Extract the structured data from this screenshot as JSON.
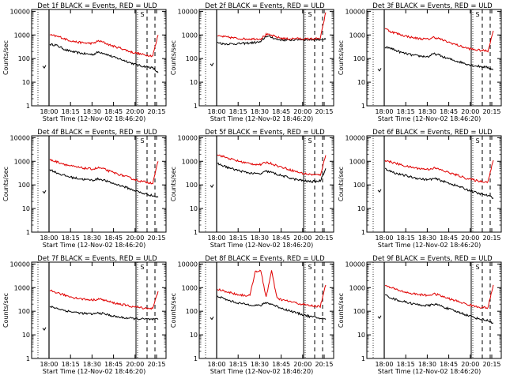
{
  "chart_data": [
    {
      "type": "line",
      "title": "Det 1f BLACK = Events, RED = ULD",
      "xlabel": "Start Time (12-Nov-02 18:46:20)",
      "ylabel": "Counts/sec",
      "yscale": "log",
      "ylim": [
        1,
        12000
      ],
      "x_ticks": [
        "18:00",
        "18:15",
        "18:30",
        "18:45",
        "20:00",
        "20:15"
      ],
      "y_ticks": [
        "1",
        "10",
        "100",
        "1000",
        "10000"
      ],
      "markers": [
        "S"
      ],
      "series": [
        {
          "color": "#000000",
          "values": [
            400,
            380,
            300,
            230,
            200,
            180,
            165,
            155,
            150,
            190,
            170,
            135,
            110,
            95,
            80,
            65,
            55,
            48,
            45,
            40,
            25
          ]
        },
        {
          "color": "#e00000",
          "values": [
            1000,
            900,
            800,
            650,
            560,
            500,
            470,
            450,
            440,
            560,
            480,
            380,
            320,
            280,
            230,
            190,
            170,
            150,
            140,
            130,
            1000
          ]
        }
      ]
    },
    {
      "type": "line",
      "title": "Det 2f BLACK = Events, RED = ULD",
      "xlabel": "Start Time (12-Nov-02 18:46:20)",
      "ylabel": "Counts/sec",
      "yscale": "log",
      "ylim": [
        1,
        12000
      ],
      "x_ticks": [
        "18:00",
        "18:15",
        "18:30",
        "18:45",
        "20:00",
        "20:15"
      ],
      "y_ticks": [
        "1",
        "10",
        "100",
        "1000",
        "10000"
      ],
      "markers": [
        "S"
      ],
      "series": [
        {
          "color": "#000000",
          "values": [
            500,
            420,
            420,
            420,
            430,
            440,
            460,
            480,
            500,
            900,
            800,
            650,
            620,
            600,
            620,
            650,
            640,
            630,
            640,
            650,
            650
          ]
        },
        {
          "color": "#e00000",
          "values": [
            900,
            850,
            800,
            750,
            700,
            680,
            680,
            680,
            690,
            1050,
            950,
            800,
            720,
            680,
            700,
            700,
            680,
            680,
            690,
            700,
            9000
          ]
        }
      ]
    },
    {
      "type": "line",
      "title": "Det 3f BLACK = Events, RED = ULD",
      "xlabel": "Start Time (12-Nov-02 18:46:20)",
      "ylabel": "Counts/sec",
      "yscale": "log",
      "ylim": [
        1,
        12000
      ],
      "x_ticks": [
        "18:00",
        "18:15",
        "18:30",
        "18:45",
        "20:00",
        "20:15"
      ],
      "y_ticks": [
        "1",
        "10",
        "100",
        "1000",
        "10000"
      ],
      "markers": [
        "S"
      ],
      "series": [
        {
          "color": "#000000",
          "values": [
            300,
            280,
            220,
            180,
            160,
            140,
            130,
            125,
            120,
            160,
            140,
            110,
            95,
            80,
            70,
            60,
            52,
            48,
            45,
            42,
            35
          ]
        },
        {
          "color": "#e00000",
          "values": [
            1900,
            1400,
            1200,
            1000,
            880,
            780,
            720,
            680,
            660,
            800,
            700,
            560,
            470,
            400,
            330,
            280,
            250,
            230,
            220,
            210,
            1500
          ]
        }
      ]
    },
    {
      "type": "line",
      "title": "Det 4f BLACK = Events, RED = ULD",
      "xlabel": "Start Time (12-Nov-02 18:46:20)",
      "ylabel": "Counts/sec",
      "yscale": "log",
      "ylim": [
        1,
        12000
      ],
      "x_ticks": [
        "18:00",
        "18:15",
        "18:30",
        "18:45",
        "20:00",
        "20:15"
      ],
      "y_ticks": [
        "1",
        "10",
        "100",
        "1000",
        "10000"
      ],
      "markers": [
        "S"
      ],
      "series": [
        {
          "color": "#000000",
          "values": [
            450,
            350,
            280,
            240,
            210,
            190,
            175,
            165,
            160,
            180,
            160,
            130,
            110,
            95,
            80,
            65,
            55,
            45,
            40,
            35,
            30
          ]
        },
        {
          "color": "#e00000",
          "values": [
            1150,
            1000,
            850,
            720,
            620,
            560,
            520,
            490,
            470,
            530,
            470,
            380,
            320,
            270,
            230,
            190,
            160,
            140,
            130,
            120,
            1000
          ]
        }
      ]
    },
    {
      "type": "line",
      "title": "Det 5f BLACK = Events, RED = ULD",
      "xlabel": "Start Time (12-Nov-02 18:46:20)",
      "ylabel": "Counts/sec",
      "yscale": "log",
      "ylim": [
        1,
        12000
      ],
      "x_ticks": [
        "18:00",
        "18:15",
        "18:30",
        "18:45",
        "20:00",
        "20:15"
      ],
      "y_ticks": [
        "1",
        "10",
        "100",
        "1000",
        "10000"
      ],
      "markers": [
        "S"
      ],
      "series": [
        {
          "color": "#000000",
          "values": [
            800,
            650,
            540,
            460,
            400,
            350,
            320,
            300,
            290,
            380,
            340,
            280,
            240,
            210,
            180,
            160,
            150,
            140,
            140,
            150,
            500
          ]
        },
        {
          "color": "#e00000",
          "values": [
            1900,
            1600,
            1350,
            1150,
            1000,
            880,
            800,
            750,
            720,
            900,
            800,
            650,
            550,
            470,
            400,
            340,
            300,
            280,
            270,
            260,
            1800
          ]
        }
      ]
    },
    {
      "type": "line",
      "title": "Det 6f BLACK = Events, RED = ULD",
      "xlabel": "Start Time (12-Nov-02 18:46:20)",
      "ylabel": "Counts/sec",
      "yscale": "log",
      "ylim": [
        1,
        12000
      ],
      "x_ticks": [
        "18:00",
        "18:15",
        "18:30",
        "18:45",
        "20:00",
        "20:15"
      ],
      "y_ticks": [
        "1",
        "10",
        "100",
        "1000",
        "10000"
      ],
      "markers": [
        "S"
      ],
      "series": [
        {
          "color": "#000000",
          "values": [
            500,
            380,
            310,
            270,
            240,
            210,
            190,
            175,
            165,
            185,
            165,
            135,
            115,
            95,
            80,
            65,
            55,
            45,
            40,
            35,
            28
          ]
        },
        {
          "color": "#e00000",
          "values": [
            1100,
            950,
            820,
            700,
            610,
            550,
            510,
            480,
            460,
            520,
            460,
            380,
            320,
            270,
            230,
            190,
            170,
            150,
            140,
            135,
            1100
          ]
        }
      ]
    },
    {
      "type": "line",
      "title": "Det 7f BLACK = Events, RED = ULD",
      "xlabel": "Start Time (12-Nov-02 18:46:20)",
      "ylabel": "Counts/sec",
      "yscale": "log",
      "ylim": [
        1,
        12000
      ],
      "x_ticks": [
        "18:00",
        "18:15",
        "18:30",
        "18:45",
        "20:00",
        "20:15"
      ],
      "y_ticks": [
        "1",
        "10",
        "100",
        "1000",
        "10000"
      ],
      "markers": [
        "S"
      ],
      "series": [
        {
          "color": "#000000",
          "values": [
            160,
            140,
            120,
            105,
            95,
            88,
            82,
            78,
            76,
            85,
            78,
            68,
            60,
            55,
            52,
            50,
            48,
            47,
            46,
            45,
            45
          ]
        },
        {
          "color": "#e00000",
          "values": [
            750,
            650,
            540,
            460,
            400,
            360,
            330,
            310,
            300,
            330,
            300,
            250,
            220,
            200,
            180,
            160,
            150,
            140,
            135,
            130,
            700
          ]
        }
      ]
    },
    {
      "type": "line",
      "title": "Det 8f BLACK = Events, RED = ULD",
      "xlabel": "Start Time (12-Nov-02 18:46:20)",
      "ylabel": "Counts/sec",
      "yscale": "log",
      "ylim": [
        1,
        12000
      ],
      "x_ticks": [
        "18:00",
        "18:15",
        "18:30",
        "18:45",
        "20:00",
        "20:15"
      ],
      "y_ticks": [
        "1",
        "10",
        "100",
        "1000",
        "10000"
      ],
      "markers": [
        "S"
      ],
      "series": [
        {
          "color": "#000000",
          "values": [
            450,
            350,
            290,
            250,
            220,
            200,
            190,
            180,
            175,
            230,
            200,
            160,
            130,
            110,
            95,
            80,
            70,
            60,
            55,
            50,
            45
          ]
        },
        {
          "color": "#e00000",
          "values": [
            850,
            750,
            650,
            560,
            500,
            470,
            460,
            5000,
            5000,
            400,
            5000,
            350,
            300,
            270,
            240,
            210,
            190,
            175,
            165,
            160,
            1300
          ]
        }
      ]
    },
    {
      "type": "line",
      "title": "Det 9f BLACK = Events, RED = ULD",
      "xlabel": "Start Time (12-Nov-02 18:46:20)",
      "ylabel": "Counts/sec",
      "yscale": "log",
      "ylim": [
        1,
        12000
      ],
      "x_ticks": [
        "18:00",
        "18:15",
        "18:30",
        "18:45",
        "20:00",
        "20:15"
      ],
      "y_ticks": [
        "1",
        "10",
        "100",
        "1000",
        "10000"
      ],
      "markers": [
        "S"
      ],
      "series": [
        {
          "color": "#000000",
          "values": [
            500,
            380,
            310,
            270,
            240,
            210,
            190,
            180,
            170,
            200,
            180,
            145,
            120,
            100,
            85,
            70,
            60,
            50,
            45,
            40,
            32
          ]
        },
        {
          "color": "#e00000",
          "values": [
            1200,
            1000,
            850,
            720,
            620,
            560,
            520,
            490,
            470,
            540,
            480,
            390,
            330,
            280,
            240,
            200,
            175,
            155,
            145,
            140,
            1300
          ]
        }
      ]
    }
  ]
}
